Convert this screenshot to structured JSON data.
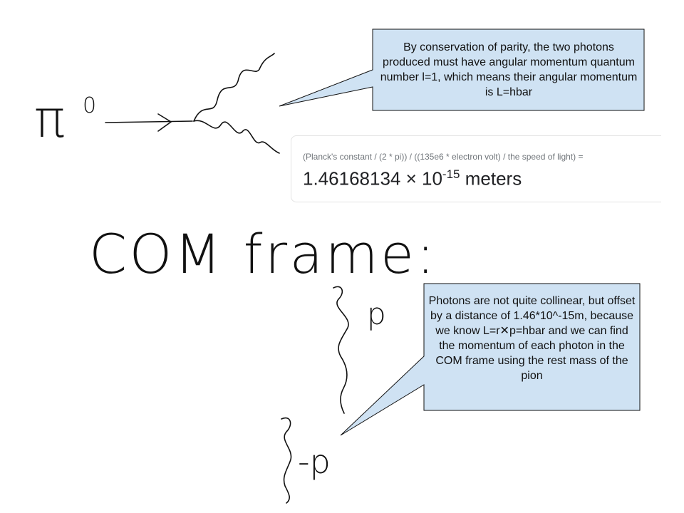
{
  "handwriting": {
    "particle": "π",
    "particle_superscript": "0",
    "frame_label": "COM frame:",
    "momentum_up": "p",
    "momentum_down": "-p"
  },
  "callouts": [
    {
      "text": "By conservation of parity, the two photons produced must have angular momentum quantum number l=1, which means their angular momentum is L=hbar"
    },
    {
      "text": "Photons are not quite collinear, but offset by a distance of 1.46*10^-15m, because we know L=r✕p=hbar and we can find the momentum of each photon in the COM frame using the rest mass of the pion"
    }
  ],
  "calculator": {
    "query": "(Planck's constant / (2 * pi)) / ((135e6 * electron volt) / the speed of light) =",
    "result_mantissa": "1.46168134 × 10",
    "result_exponent": "-15",
    "result_unit": "meters"
  }
}
